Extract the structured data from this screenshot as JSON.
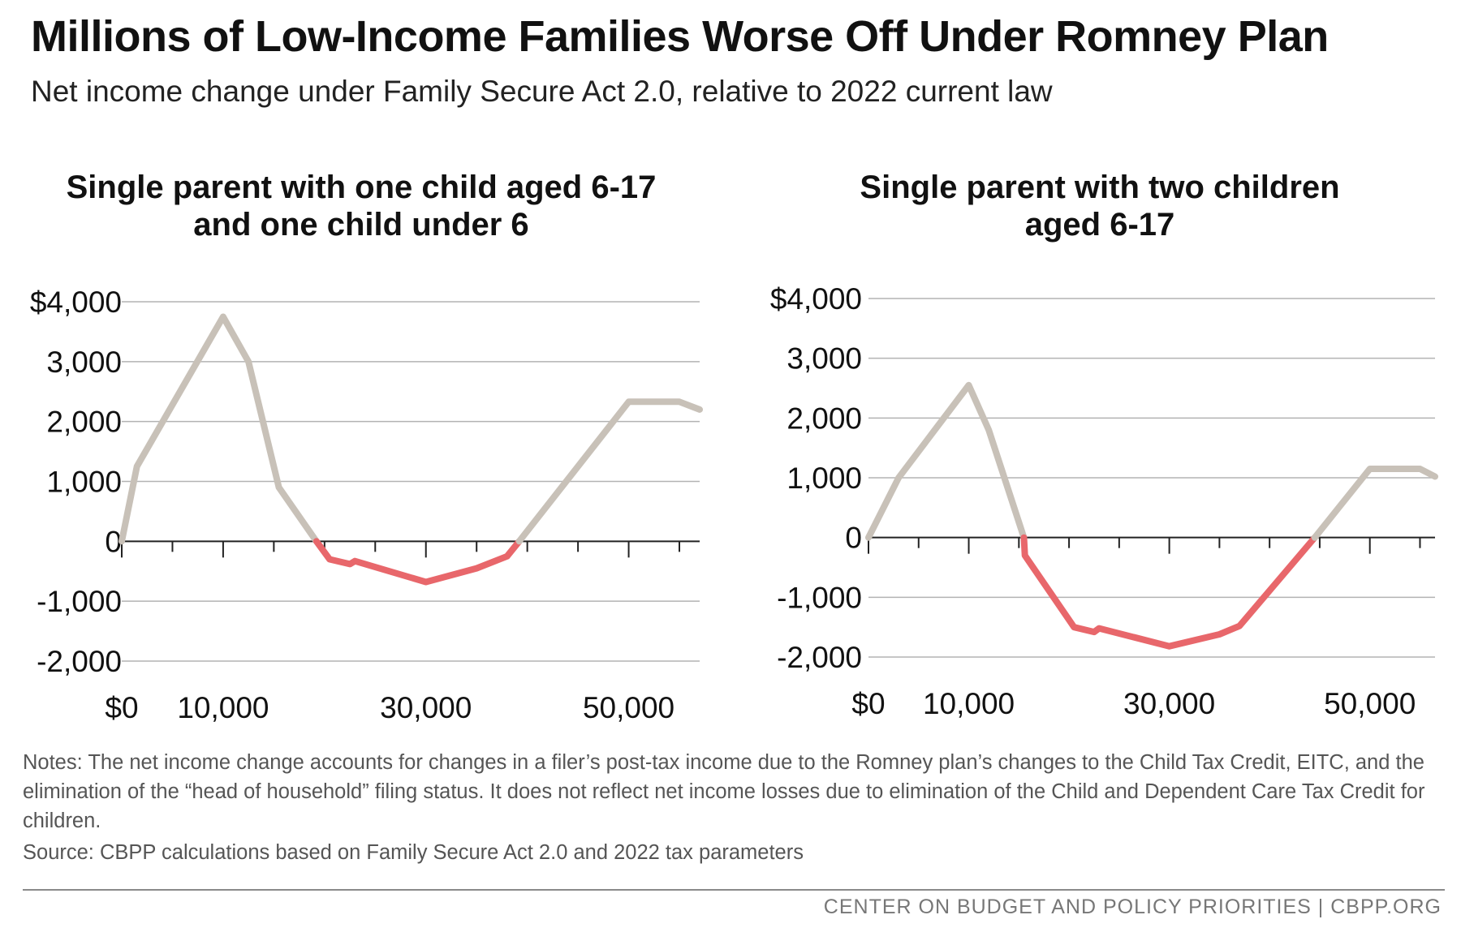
{
  "header": {
    "title": "Millions of Low-Income Families Worse Off Under Romney Plan",
    "subtitle": "Net income change under Family Secure Act 2.0, relative to 2022 current law"
  },
  "chart_data": [
    {
      "type": "line",
      "title_lines": [
        "Single parent with one child aged 6-17",
        "and one child under 6"
      ],
      "xlabel": "",
      "ylabel": "",
      "xlim": [
        0,
        57000
      ],
      "ylim": [
        -2000,
        4000
      ],
      "y_ticks": [
        4000,
        3000,
        2000,
        1000,
        0,
        -1000,
        -2000
      ],
      "y_tick_labels": [
        "$4,000",
        "3,000",
        "2,000",
        "1,000",
        "0",
        "-1,000",
        "-2,000"
      ],
      "x_ticks": [
        0,
        5000,
        10000,
        15000,
        20000,
        25000,
        30000,
        35000,
        40000,
        45000,
        50000,
        55000
      ],
      "x_tick_labels": [
        {
          "x": 0,
          "label": "$0"
        },
        {
          "x": 10000,
          "label": "10,000"
        },
        {
          "x": 30000,
          "label": "30,000"
        },
        {
          "x": 50000,
          "label": "50,000"
        }
      ],
      "grid": true,
      "series": [
        {
          "color_gain": "#c8c1b8",
          "color_loss": "#e8676b",
          "points": [
            [
              0,
              0
            ],
            [
              1500,
              1250
            ],
            [
              10000,
              3750
            ],
            [
              12500,
              3000
            ],
            [
              15500,
              900
            ],
            [
              19200,
              0
            ],
            [
              20500,
              -300
            ],
            [
              22500,
              -380
            ],
            [
              23000,
              -330
            ],
            [
              30000,
              -680
            ],
            [
              35000,
              -450
            ],
            [
              38000,
              -250
            ],
            [
              39200,
              0
            ],
            [
              50000,
              2330
            ],
            [
              55000,
              2330
            ],
            [
              57000,
              2200
            ]
          ]
        }
      ]
    },
    {
      "type": "line",
      "title_lines": [
        "Single parent with two children",
        "aged 6-17"
      ],
      "xlabel": "",
      "ylabel": "",
      "xlim": [
        0,
        56500
      ],
      "ylim": [
        -2000,
        4000
      ],
      "y_ticks": [
        4000,
        3000,
        2000,
        1000,
        0,
        -1000,
        -2000
      ],
      "y_tick_labels": [
        "$4,000",
        "3,000",
        "2,000",
        "1,000",
        "0",
        "-1,000",
        "-2,000"
      ],
      "x_ticks": [
        0,
        5000,
        10000,
        15000,
        20000,
        25000,
        30000,
        35000,
        40000,
        45000,
        50000,
        55000
      ],
      "x_tick_labels": [
        {
          "x": 0,
          "label": "$0"
        },
        {
          "x": 10000,
          "label": "10,000"
        },
        {
          "x": 30000,
          "label": "30,000"
        },
        {
          "x": 50000,
          "label": "50,000"
        }
      ],
      "grid": true,
      "series": [
        {
          "color_gain": "#c8c1b8",
          "color_loss": "#e8676b",
          "points": [
            [
              0,
              0
            ],
            [
              3000,
              1000
            ],
            [
              10000,
              2550
            ],
            [
              12000,
              1800
            ],
            [
              15500,
              0
            ],
            [
              15600,
              -300
            ],
            [
              20500,
              -1500
            ],
            [
              22500,
              -1580
            ],
            [
              23000,
              -1520
            ],
            [
              30000,
              -1820
            ],
            [
              35000,
              -1620
            ],
            [
              37000,
              -1480
            ],
            [
              44500,
              0
            ],
            [
              50000,
              1150
            ],
            [
              55000,
              1150
            ],
            [
              56500,
              1020
            ]
          ]
        }
      ]
    }
  ],
  "footer": {
    "notes": "Notes: The net income change accounts for changes in a filer’s post-tax income due to the Romney plan’s changes to the Child Tax Credit, EITC, and the elimination of the “head of household” filing status. It does not reflect net income losses due to elimination of the Child and Dependent Care Tax Credit for children.",
    "source": "Source: CBPP calculations based on Family Secure Act 2.0 and 2022 tax parameters",
    "credit": "CENTER ON BUDGET AND POLICY PRIORITIES | CBPP.ORG"
  }
}
